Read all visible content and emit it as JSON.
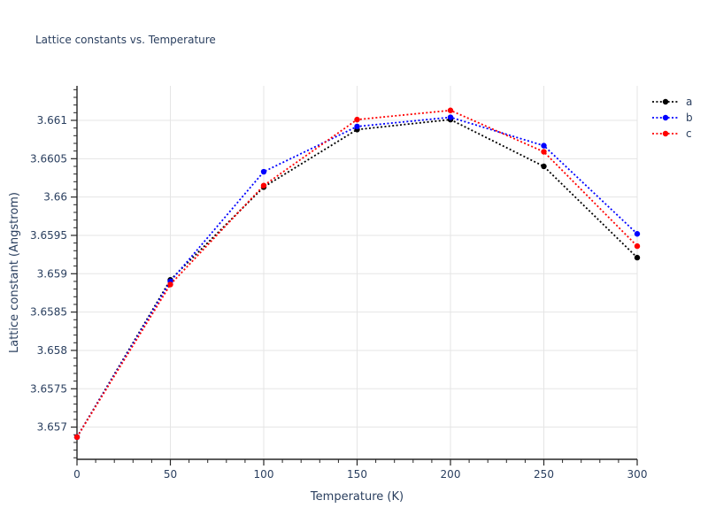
{
  "chart_data": {
    "type": "line",
    "title": "Lattice constants vs. Temperature",
    "xlabel": "Temperature (K)",
    "ylabel": "Lattice constant (Angstrom)",
    "x": [
      0,
      50,
      100,
      150,
      200,
      250,
      300
    ],
    "series": [
      {
        "name": "a",
        "color": "#000000",
        "values": [
          3.65687,
          3.65892,
          3.66013,
          3.66088,
          3.66101,
          3.6604,
          3.65921
        ]
      },
      {
        "name": "b",
        "color": "#0000ff",
        "values": [
          3.65687,
          3.6589,
          3.66033,
          3.66092,
          3.66104,
          3.66067,
          3.65952
        ]
      },
      {
        "name": "c",
        "color": "#ff0000",
        "values": [
          3.65687,
          3.65886,
          3.66015,
          3.66101,
          3.66113,
          3.66059,
          3.65936
        ]
      }
    ],
    "line_style": "dotted",
    "marker": "circle",
    "grid": true,
    "legend_position": "outside-right",
    "xlim": [
      0,
      300
    ],
    "ylim": [
      3.65658,
      3.66145
    ],
    "x_ticks": [
      0,
      50,
      100,
      150,
      200,
      250,
      300
    ],
    "x_tick_labels": [
      "0",
      "50",
      "100",
      "150",
      "200",
      "250",
      "300"
    ],
    "y_ticks": [
      3.657,
      3.6575,
      3.658,
      3.6585,
      3.659,
      3.6595,
      3.66,
      3.6605,
      3.661
    ],
    "y_tick_labels": [
      "3.657",
      "3.6575",
      "3.658",
      "3.6585",
      "3.659",
      "3.6595",
      "3.66",
      "3.6605",
      "3.661"
    ],
    "x_minor_step": 10,
    "y_minor_step": 0.0001
  },
  "style": {
    "text_color": "#2a3f5f",
    "spine_color": "#262626",
    "tick_color": "#262626",
    "grid_color": "#e5e5e5",
    "background": "#ffffff"
  }
}
